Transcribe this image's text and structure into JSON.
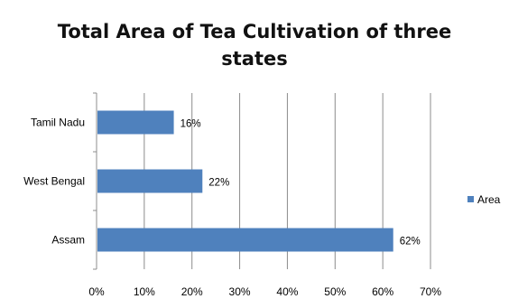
{
  "chart_data": {
    "type": "bar",
    "orientation": "horizontal",
    "title_lines": [
      "Total Area of Tea Cultivation of three",
      "states"
    ],
    "categories": [
      "Tamil Nadu",
      "West Bengal",
      "Assam"
    ],
    "series": [
      {
        "name": "Area",
        "values": [
          16,
          22,
          62
        ],
        "color": "#4f81bd"
      }
    ],
    "data_labels": [
      "16%",
      "22%",
      "62%"
    ],
    "xlim": [
      0,
      70
    ],
    "x_ticks": [
      "0%",
      "10%",
      "20%",
      "30%",
      "40%",
      "50%",
      "60%",
      "70%"
    ],
    "grid": true,
    "legend_position": "right"
  }
}
